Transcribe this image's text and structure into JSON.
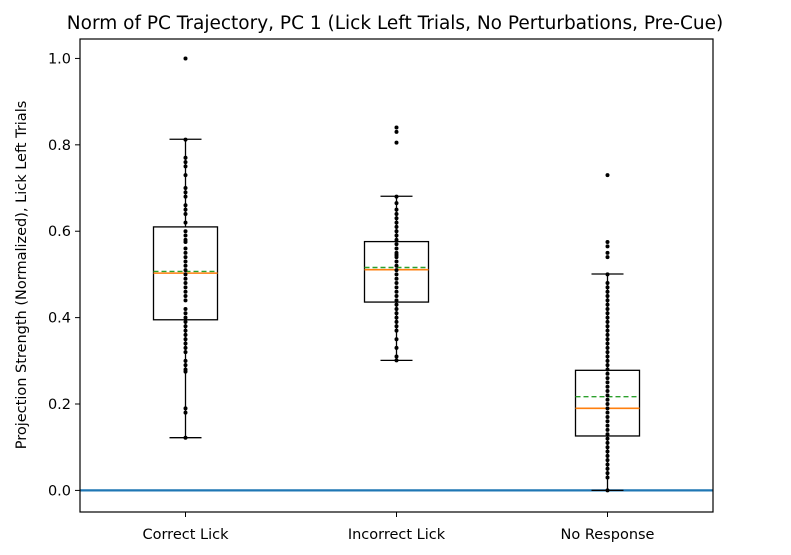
{
  "chart_data": {
    "type": "box",
    "title": "Norm of PC Trajectory, PC 1  (Lick Left Trials, No Perturbations, Pre-Cue)",
    "xlabel": "",
    "ylabel": "Projection Strength (Normalized), Lick Left Trials",
    "ylim": [
      -0.05,
      1.045
    ],
    "yticks": [
      "0.0",
      "0.2",
      "0.4",
      "0.6",
      "0.8",
      "1.0"
    ],
    "reference_line_y": 0.0,
    "colors": {
      "box": "#000000",
      "median": "#ff7f0e",
      "mean": "#2ca02c",
      "reference": "#1f77b4",
      "points": "#000000"
    },
    "categories": [
      "Correct Lick",
      "Incorrect Lick",
      "No Response"
    ],
    "boxes": [
      {
        "label": "Correct Lick",
        "whisker_low": 0.122,
        "q1": 0.395,
        "median": 0.503,
        "mean": 0.507,
        "q3": 0.61,
        "whisker_high": 0.813,
        "points": [
          1.0,
          0.812,
          0.77,
          0.76,
          0.75,
          0.73,
          0.7,
          0.69,
          0.68,
          0.66,
          0.65,
          0.64,
          0.62,
          0.6,
          0.59,
          0.58,
          0.575,
          0.56,
          0.55,
          0.54,
          0.53,
          0.52,
          0.51,
          0.5,
          0.49,
          0.48,
          0.47,
          0.46,
          0.45,
          0.44,
          0.42,
          0.41,
          0.4,
          0.39,
          0.38,
          0.37,
          0.36,
          0.35,
          0.34,
          0.33,
          0.32,
          0.3,
          0.29,
          0.28,
          0.275,
          0.19,
          0.18,
          0.122
        ]
      },
      {
        "label": "Incorrect Lick",
        "whisker_low": 0.301,
        "q1": 0.436,
        "median": 0.511,
        "mean": 0.516,
        "q3": 0.576,
        "whisker_high": 0.681,
        "points": [
          0.84,
          0.83,
          0.805,
          0.68,
          0.665,
          0.65,
          0.64,
          0.63,
          0.62,
          0.61,
          0.6,
          0.59,
          0.58,
          0.57,
          0.56,
          0.55,
          0.545,
          0.54,
          0.53,
          0.52,
          0.51,
          0.5,
          0.49,
          0.48,
          0.47,
          0.46,
          0.45,
          0.44,
          0.43,
          0.42,
          0.41,
          0.4,
          0.39,
          0.38,
          0.37,
          0.35,
          0.33,
          0.31,
          0.301
        ]
      },
      {
        "label": "No Response",
        "whisker_low": 0.0,
        "q1": 0.126,
        "median": 0.19,
        "mean": 0.217,
        "q3": 0.278,
        "whisker_high": 0.501,
        "points": [
          0.73,
          0.575,
          0.565,
          0.55,
          0.54,
          0.5,
          0.48,
          0.47,
          0.46,
          0.45,
          0.44,
          0.43,
          0.42,
          0.41,
          0.4,
          0.39,
          0.38,
          0.37,
          0.36,
          0.35,
          0.34,
          0.33,
          0.32,
          0.31,
          0.3,
          0.29,
          0.28,
          0.27,
          0.26,
          0.25,
          0.24,
          0.23,
          0.22,
          0.21,
          0.2,
          0.19,
          0.18,
          0.17,
          0.16,
          0.15,
          0.14,
          0.13,
          0.12,
          0.11,
          0.1,
          0.09,
          0.08,
          0.07,
          0.06,
          0.05,
          0.04,
          0.03,
          0.0
        ]
      }
    ]
  }
}
